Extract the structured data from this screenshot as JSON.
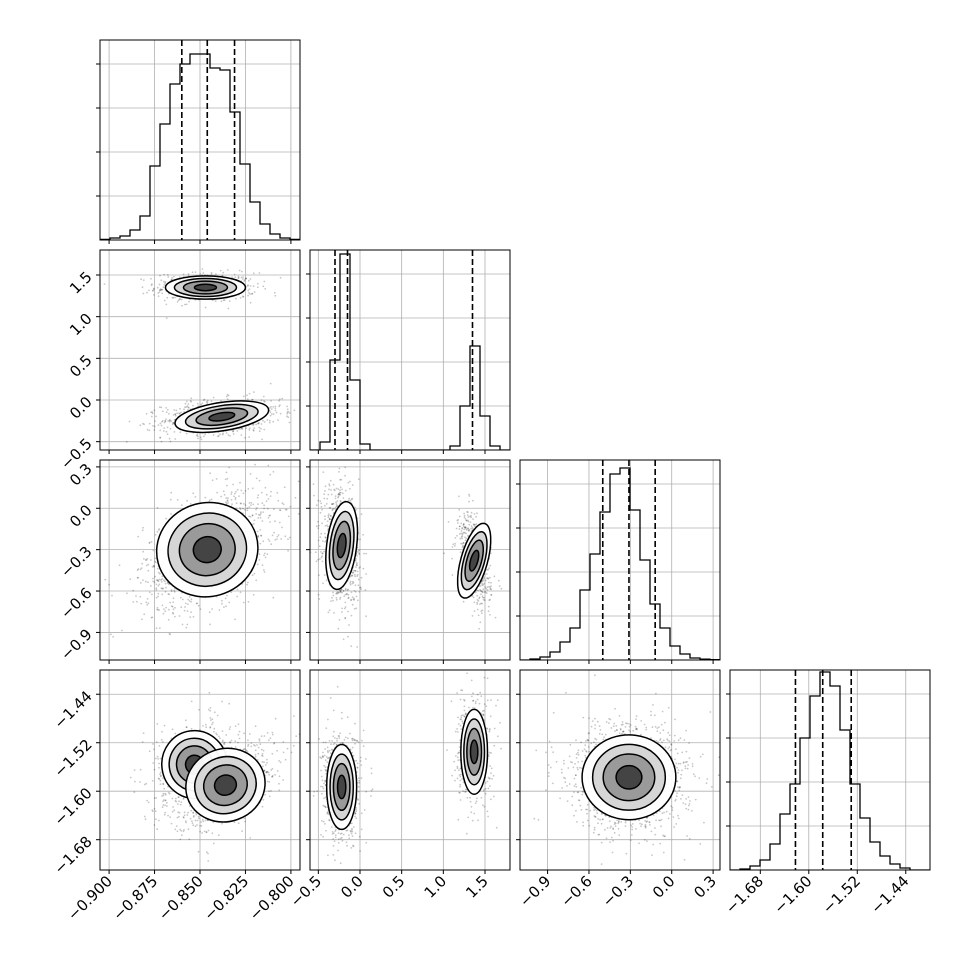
{
  "chart_data": {
    "type": "corner",
    "n_params": 4,
    "grid": true,
    "params": [
      {
        "range": [
          -0.905,
          -0.795
        ],
        "ticks": [
          "−0.900",
          "−0.875",
          "−0.850",
          "−0.825",
          "−0.800"
        ],
        "tick_values": [
          -0.9,
          -0.875,
          -0.85,
          -0.825,
          -0.8
        ],
        "quantiles": [
          -0.86,
          -0.846,
          -0.831
        ],
        "hist": [
          0.003,
          0.01,
          0.02,
          0.05,
          0.12,
          0.37,
          0.58,
          0.78,
          0.88,
          0.93,
          0.93,
          0.86,
          0.85,
          0.64,
          0.38,
          0.19,
          0.08,
          0.03,
          0.01,
          0.003
        ]
      },
      {
        "range": [
          -0.6,
          1.8
        ],
        "ticks": [
          "−0.5",
          "0.0",
          "0.5",
          "1.0",
          "1.5"
        ],
        "tick_values": [
          -0.5,
          0.0,
          0.5,
          1.0,
          1.5
        ],
        "quantiles": [
          -0.3,
          -0.15,
          1.35
        ],
        "hist": [
          0.0,
          0.04,
          0.45,
          0.98,
          0.35,
          0.03,
          0.0,
          0.0,
          0.0,
          0.0,
          0.0,
          0.0,
          0.0,
          0.0,
          0.02,
          0.22,
          0.52,
          0.17,
          0.02,
          0.0
        ]
      },
      {
        "range": [
          -1.1,
          0.35
        ],
        "ticks": [
          "−0.9",
          "−0.6",
          "−0.3",
          "0.0",
          "0.3"
        ],
        "tick_values": [
          -0.9,
          -0.6,
          -0.3,
          0.0,
          0.3
        ],
        "quantiles": [
          -0.5,
          -0.31,
          -0.12
        ],
        "hist": [
          0.0,
          0.005,
          0.015,
          0.04,
          0.09,
          0.16,
          0.35,
          0.53,
          0.74,
          0.93,
          0.96,
          0.75,
          0.5,
          0.28,
          0.16,
          0.07,
          0.03,
          0.01,
          0.004,
          0.002
        ]
      },
      {
        "range": [
          -1.73,
          -1.4
        ],
        "ticks": [
          "−1.68",
          "−1.60",
          "−1.52",
          "−1.44"
        ],
        "tick_values": [
          -1.68,
          -1.6,
          -1.52,
          -1.44
        ],
        "quantiles": [
          -1.622,
          -1.577,
          -1.53
        ],
        "hist": [
          0.0,
          0.005,
          0.02,
          0.05,
          0.13,
          0.28,
          0.43,
          0.66,
          0.87,
          0.99,
          0.92,
          0.7,
          0.43,
          0.26,
          0.14,
          0.07,
          0.03,
          0.01,
          0.0,
          0.0
        ]
      }
    ],
    "pairs": [
      {
        "row": 1,
        "col": 0,
        "modes": [
          {
            "cx": -0.847,
            "cy": 1.35,
            "sx": 0.011,
            "sy": 0.07,
            "r": 0,
            "w": 0.4
          },
          {
            "cx": -0.838,
            "cy": -0.2,
            "sx": 0.013,
            "sy": 0.085,
            "r": 0.25,
            "w": 0.6
          }
        ]
      },
      {
        "row": 2,
        "col": 0,
        "modes": [
          {
            "cx": -0.846,
            "cy": -0.3,
            "sx": 0.014,
            "sy": 0.17,
            "r": 0.45,
            "w": 1.0
          }
        ]
      },
      {
        "row": 2,
        "col": 1,
        "modes": [
          {
            "cx": -0.22,
            "cy": -0.27,
            "sx": 0.09,
            "sy": 0.16,
            "r": -0.2,
            "w": 0.6
          },
          {
            "cx": 1.37,
            "cy": -0.38,
            "sx": 0.08,
            "sy": 0.14,
            "r": -0.45,
            "w": 0.4
          }
        ]
      },
      {
        "row": 3,
        "col": 0,
        "modes": [
          {
            "cx": -0.853,
            "cy": -1.556,
            "sx": 0.009,
            "sy": 0.028,
            "r": 0.2,
            "w": 0.45
          },
          {
            "cx": -0.836,
            "cy": -1.59,
            "sx": 0.011,
            "sy": 0.03,
            "r": 0.55,
            "w": 0.55
          }
        ]
      },
      {
        "row": 3,
        "col": 1,
        "modes": [
          {
            "cx": -0.22,
            "cy": -1.593,
            "sx": 0.09,
            "sy": 0.035,
            "r": 0,
            "w": 0.6
          },
          {
            "cx": 1.37,
            "cy": -1.535,
            "sx": 0.08,
            "sy": 0.035,
            "r": 0,
            "w": 0.4
          }
        ]
      },
      {
        "row": 3,
        "col": 2,
        "modes": [
          {
            "cx": -0.31,
            "cy": -1.577,
            "sx": 0.17,
            "sy": 0.035,
            "r": 0,
            "w": 1.0
          }
        ]
      }
    ]
  }
}
